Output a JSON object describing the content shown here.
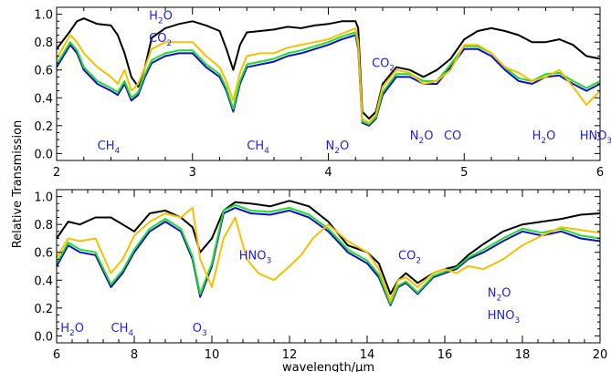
{
  "chart_data": [
    {
      "type": "line",
      "x_ticks": [
        "2",
        "3",
        "4",
        "5",
        "6"
      ],
      "y_ticks": [
        "0.0",
        "0.2",
        "0.4",
        "0.6",
        "0.8",
        "1.0"
      ],
      "xlim": [
        2,
        6
      ],
      "ylim": [
        -0.05,
        1.05
      ],
      "grid": false,
      "series": [
        {
          "color": "#000000",
          "x": [
            2.0,
            2.1,
            2.15,
            2.2,
            2.3,
            2.4,
            2.45,
            2.5,
            2.55,
            2.6,
            2.65,
            2.7,
            2.8,
            2.9,
            3.0,
            3.1,
            3.2,
            3.25,
            3.3,
            3.35,
            3.4,
            3.5,
            3.6,
            3.7,
            3.8,
            3.9,
            4.0,
            4.1,
            4.2,
            4.22,
            4.25,
            4.3,
            4.35,
            4.4,
            4.5,
            4.6,
            4.7,
            4.8,
            4.9,
            5.0,
            5.1,
            5.2,
            5.3,
            5.4,
            5.5,
            5.6,
            5.7,
            5.8,
            5.9,
            6.0
          ],
          "y": [
            0.75,
            0.88,
            0.95,
            0.97,
            0.93,
            0.92,
            0.85,
            0.72,
            0.55,
            0.48,
            0.62,
            0.83,
            0.9,
            0.93,
            0.95,
            0.92,
            0.88,
            0.75,
            0.6,
            0.78,
            0.87,
            0.88,
            0.89,
            0.91,
            0.9,
            0.92,
            0.93,
            0.95,
            0.95,
            0.9,
            0.3,
            0.25,
            0.3,
            0.5,
            0.62,
            0.6,
            0.55,
            0.6,
            0.68,
            0.82,
            0.88,
            0.9,
            0.88,
            0.85,
            0.8,
            0.8,
            0.82,
            0.78,
            0.7,
            0.68
          ]
        },
        {
          "color": "#1010cc",
          "x": [
            2.0,
            2.1,
            2.15,
            2.2,
            2.3,
            2.4,
            2.45,
            2.5,
            2.55,
            2.6,
            2.65,
            2.7,
            2.8,
            2.9,
            3.0,
            3.1,
            3.2,
            3.25,
            3.3,
            3.35,
            3.4,
            3.5,
            3.6,
            3.7,
            3.8,
            3.9,
            4.0,
            4.1,
            4.2,
            4.22,
            4.25,
            4.3,
            4.35,
            4.4,
            4.5,
            4.6,
            4.7,
            4.8,
            4.9,
            5.0,
            5.1,
            5.2,
            5.3,
            5.4,
            5.5,
            5.6,
            5.7,
            5.8,
            5.9,
            6.0
          ],
          "y": [
            0.62,
            0.78,
            0.72,
            0.6,
            0.5,
            0.45,
            0.42,
            0.5,
            0.38,
            0.42,
            0.55,
            0.65,
            0.7,
            0.72,
            0.72,
            0.62,
            0.55,
            0.45,
            0.3,
            0.5,
            0.62,
            0.64,
            0.66,
            0.7,
            0.72,
            0.75,
            0.78,
            0.82,
            0.85,
            0.75,
            0.22,
            0.2,
            0.25,
            0.42,
            0.55,
            0.55,
            0.5,
            0.5,
            0.62,
            0.75,
            0.75,
            0.7,
            0.6,
            0.52,
            0.5,
            0.55,
            0.56,
            0.5,
            0.45,
            0.5
          ]
        },
        {
          "color": "#22dd22",
          "x": [
            2.0,
            2.1,
            2.15,
            2.2,
            2.3,
            2.4,
            2.45,
            2.5,
            2.55,
            2.6,
            2.65,
            2.7,
            2.8,
            2.9,
            3.0,
            3.1,
            3.2,
            3.25,
            3.3,
            3.35,
            3.4,
            3.5,
            3.6,
            3.7,
            3.8,
            3.9,
            4.0,
            4.1,
            4.2,
            4.22,
            4.25,
            4.3,
            4.35,
            4.4,
            4.5,
            4.6,
            4.7,
            4.8,
            4.9,
            5.0,
            5.1,
            5.2,
            5.3,
            5.4,
            5.5,
            5.6,
            5.7,
            5.8,
            5.9,
            6.0
          ],
          "y": [
            0.64,
            0.8,
            0.74,
            0.62,
            0.52,
            0.47,
            0.44,
            0.52,
            0.4,
            0.44,
            0.57,
            0.67,
            0.72,
            0.74,
            0.74,
            0.64,
            0.57,
            0.47,
            0.32,
            0.52,
            0.64,
            0.66,
            0.68,
            0.72,
            0.74,
            0.77,
            0.8,
            0.84,
            0.87,
            0.77,
            0.23,
            0.21,
            0.26,
            0.44,
            0.57,
            0.57,
            0.52,
            0.52,
            0.64,
            0.77,
            0.77,
            0.72,
            0.62,
            0.54,
            0.52,
            0.57,
            0.58,
            0.52,
            0.47,
            0.52
          ]
        },
        {
          "color": "#f5c000",
          "x": [
            2.0,
            2.1,
            2.15,
            2.2,
            2.3,
            2.4,
            2.45,
            2.5,
            2.55,
            2.6,
            2.65,
            2.7,
            2.8,
            2.9,
            3.0,
            3.1,
            3.2,
            3.25,
            3.3,
            3.35,
            3.4,
            3.5,
            3.6,
            3.7,
            3.8,
            3.9,
            4.0,
            4.1,
            4.2,
            4.22,
            4.25,
            4.3,
            4.35,
            4.4,
            4.5,
            4.6,
            4.7,
            4.8,
            4.9,
            5.0,
            5.1,
            5.2,
            5.3,
            5.4,
            5.5,
            5.6,
            5.7,
            5.8,
            5.9,
            6.0
          ],
          "y": [
            0.68,
            0.85,
            0.8,
            0.72,
            0.62,
            0.55,
            0.5,
            0.6,
            0.45,
            0.5,
            0.62,
            0.75,
            0.8,
            0.8,
            0.8,
            0.7,
            0.62,
            0.52,
            0.38,
            0.58,
            0.7,
            0.72,
            0.72,
            0.76,
            0.78,
            0.8,
            0.82,
            0.86,
            0.9,
            0.8,
            0.25,
            0.22,
            0.28,
            0.48,
            0.6,
            0.58,
            0.5,
            0.52,
            0.6,
            0.78,
            0.78,
            0.72,
            0.62,
            0.58,
            0.52,
            0.55,
            0.6,
            0.48,
            0.35,
            0.45
          ]
        }
      ],
      "annotations": [
        {
          "base": "CH",
          "sub": "4",
          "x": 2.3,
          "y": 0.03
        },
        {
          "base": "H",
          "sub": "2",
          "tail": "O",
          "x": 2.68,
          "y": 0.96
        },
        {
          "base": "CO",
          "sub": "2",
          "x": 2.68,
          "y": 0.8
        },
        {
          "base": "CH",
          "sub": "4",
          "x": 3.4,
          "y": 0.03
        },
        {
          "base": "N",
          "sub": "2",
          "tail": "O",
          "x": 3.98,
          "y": 0.03
        },
        {
          "base": "CO",
          "sub": "2",
          "x": 4.32,
          "y": 0.62
        },
        {
          "base": "N",
          "sub": "2",
          "tail": "O",
          "x": 4.6,
          "y": 0.1
        },
        {
          "base": "CO",
          "sub": "",
          "x": 4.85,
          "y": 0.1
        },
        {
          "base": "H",
          "sub": "2",
          "tail": "O",
          "x": 5.5,
          "y": 0.1
        },
        {
          "base": "HNO",
          "sub": "3",
          "x": 5.85,
          "y": 0.1
        }
      ]
    },
    {
      "type": "line",
      "x_ticks": [
        "6",
        "8",
        "10",
        "12",
        "14",
        "16",
        "18",
        "20"
      ],
      "y_ticks": [
        "0.0",
        "0.2",
        "0.4",
        "0.6",
        "0.8",
        "1.0"
      ],
      "xlim": [
        6,
        20
      ],
      "ylim": [
        -0.05,
        1.05
      ],
      "grid": false,
      "xlabel": "wavelength/μm",
      "series": [
        {
          "color": "#000000",
          "x": [
            6.0,
            6.3,
            6.6,
            7.0,
            7.4,
            7.7,
            8.0,
            8.4,
            8.8,
            9.2,
            9.5,
            9.7,
            10.0,
            10.3,
            10.6,
            11.0,
            11.5,
            12.0,
            12.5,
            13.0,
            13.5,
            14.0,
            14.3,
            14.6,
            14.8,
            15.0,
            15.3,
            15.7,
            16.0,
            16.3,
            16.6,
            17.0,
            17.5,
            18.0,
            18.5,
            19.0,
            19.5,
            20.0
          ],
          "y": [
            0.7,
            0.82,
            0.8,
            0.85,
            0.85,
            0.8,
            0.75,
            0.88,
            0.9,
            0.85,
            0.78,
            0.6,
            0.7,
            0.9,
            0.96,
            0.95,
            0.93,
            0.97,
            0.93,
            0.82,
            0.65,
            0.6,
            0.52,
            0.3,
            0.4,
            0.45,
            0.38,
            0.45,
            0.48,
            0.5,
            0.58,
            0.66,
            0.75,
            0.8,
            0.82,
            0.84,
            0.87,
            0.88
          ]
        },
        {
          "color": "#1010cc",
          "x": [
            6.0,
            6.3,
            6.6,
            7.0,
            7.4,
            7.7,
            8.0,
            8.4,
            8.8,
            9.2,
            9.5,
            9.7,
            10.0,
            10.3,
            10.6,
            11.0,
            11.5,
            12.0,
            12.5,
            13.0,
            13.5,
            14.0,
            14.3,
            14.6,
            14.8,
            15.0,
            15.3,
            15.7,
            16.0,
            16.3,
            16.6,
            17.0,
            17.5,
            18.0,
            18.5,
            19.0,
            19.5,
            20.0
          ],
          "y": [
            0.5,
            0.65,
            0.6,
            0.58,
            0.35,
            0.45,
            0.6,
            0.75,
            0.82,
            0.75,
            0.55,
            0.28,
            0.5,
            0.88,
            0.92,
            0.88,
            0.87,
            0.9,
            0.85,
            0.75,
            0.6,
            0.52,
            0.42,
            0.22,
            0.35,
            0.38,
            0.3,
            0.42,
            0.45,
            0.48,
            0.55,
            0.6,
            0.68,
            0.75,
            0.72,
            0.75,
            0.7,
            0.68
          ]
        },
        {
          "color": "#22dd22",
          "x": [
            6.0,
            6.3,
            6.6,
            7.0,
            7.4,
            7.7,
            8.0,
            8.4,
            8.8,
            9.2,
            9.5,
            9.7,
            10.0,
            10.3,
            10.6,
            11.0,
            11.5,
            12.0,
            12.5,
            13.0,
            13.5,
            14.0,
            14.3,
            14.6,
            14.8,
            15.0,
            15.3,
            15.7,
            16.0,
            16.3,
            16.6,
            17.0,
            17.5,
            18.0,
            18.5,
            19.0,
            19.5,
            20.0
          ],
          "y": [
            0.52,
            0.67,
            0.62,
            0.6,
            0.37,
            0.47,
            0.62,
            0.77,
            0.84,
            0.77,
            0.57,
            0.3,
            0.52,
            0.9,
            0.94,
            0.9,
            0.89,
            0.92,
            0.87,
            0.77,
            0.62,
            0.54,
            0.44,
            0.23,
            0.36,
            0.39,
            0.31,
            0.43,
            0.46,
            0.49,
            0.56,
            0.62,
            0.7,
            0.77,
            0.74,
            0.77,
            0.72,
            0.7
          ]
        },
        {
          "color": "#f5c000",
          "x": [
            6.0,
            6.3,
            6.6,
            7.0,
            7.4,
            7.7,
            8.0,
            8.4,
            8.8,
            9.2,
            9.5,
            9.7,
            10.0,
            10.3,
            10.6,
            10.9,
            11.2,
            11.6,
            12.0,
            12.3,
            12.6,
            13.0,
            13.5,
            14.0,
            14.3,
            14.6,
            14.8,
            15.0,
            15.3,
            15.7,
            16.0,
            16.3,
            16.6,
            17.0,
            17.5,
            18.0,
            18.5,
            19.0,
            19.5,
            20.0
          ],
          "y": [
            0.56,
            0.7,
            0.68,
            0.7,
            0.45,
            0.55,
            0.72,
            0.82,
            0.88,
            0.85,
            0.92,
            0.55,
            0.35,
            0.7,
            0.85,
            0.55,
            0.45,
            0.4,
            0.5,
            0.58,
            0.7,
            0.8,
            0.68,
            0.6,
            0.48,
            0.25,
            0.4,
            0.42,
            0.35,
            0.45,
            0.48,
            0.45,
            0.5,
            0.48,
            0.55,
            0.65,
            0.72,
            0.78,
            0.76,
            0.74
          ]
        }
      ],
      "annotations": [
        {
          "base": "H",
          "sub": "2",
          "tail": "O",
          "x": 6.1,
          "y": 0.03
        },
        {
          "base": "CH",
          "sub": "4",
          "x": 7.4,
          "y": 0.03
        },
        {
          "base": "O",
          "sub": "3",
          "x": 9.5,
          "y": 0.03
        },
        {
          "base": "HNO",
          "sub": "3",
          "x": 10.7,
          "y": 0.55
        },
        {
          "base": "CO",
          "sub": "2",
          "x": 14.8,
          "y": 0.55
        },
        {
          "base": "N",
          "sub": "2",
          "tail": "O",
          "x": 17.1,
          "y": 0.28
        },
        {
          "base": "HNO",
          "sub": "3",
          "x": 17.1,
          "y": 0.12
        }
      ]
    }
  ],
  "shared": {
    "ylabel": "Relative Transmission"
  }
}
